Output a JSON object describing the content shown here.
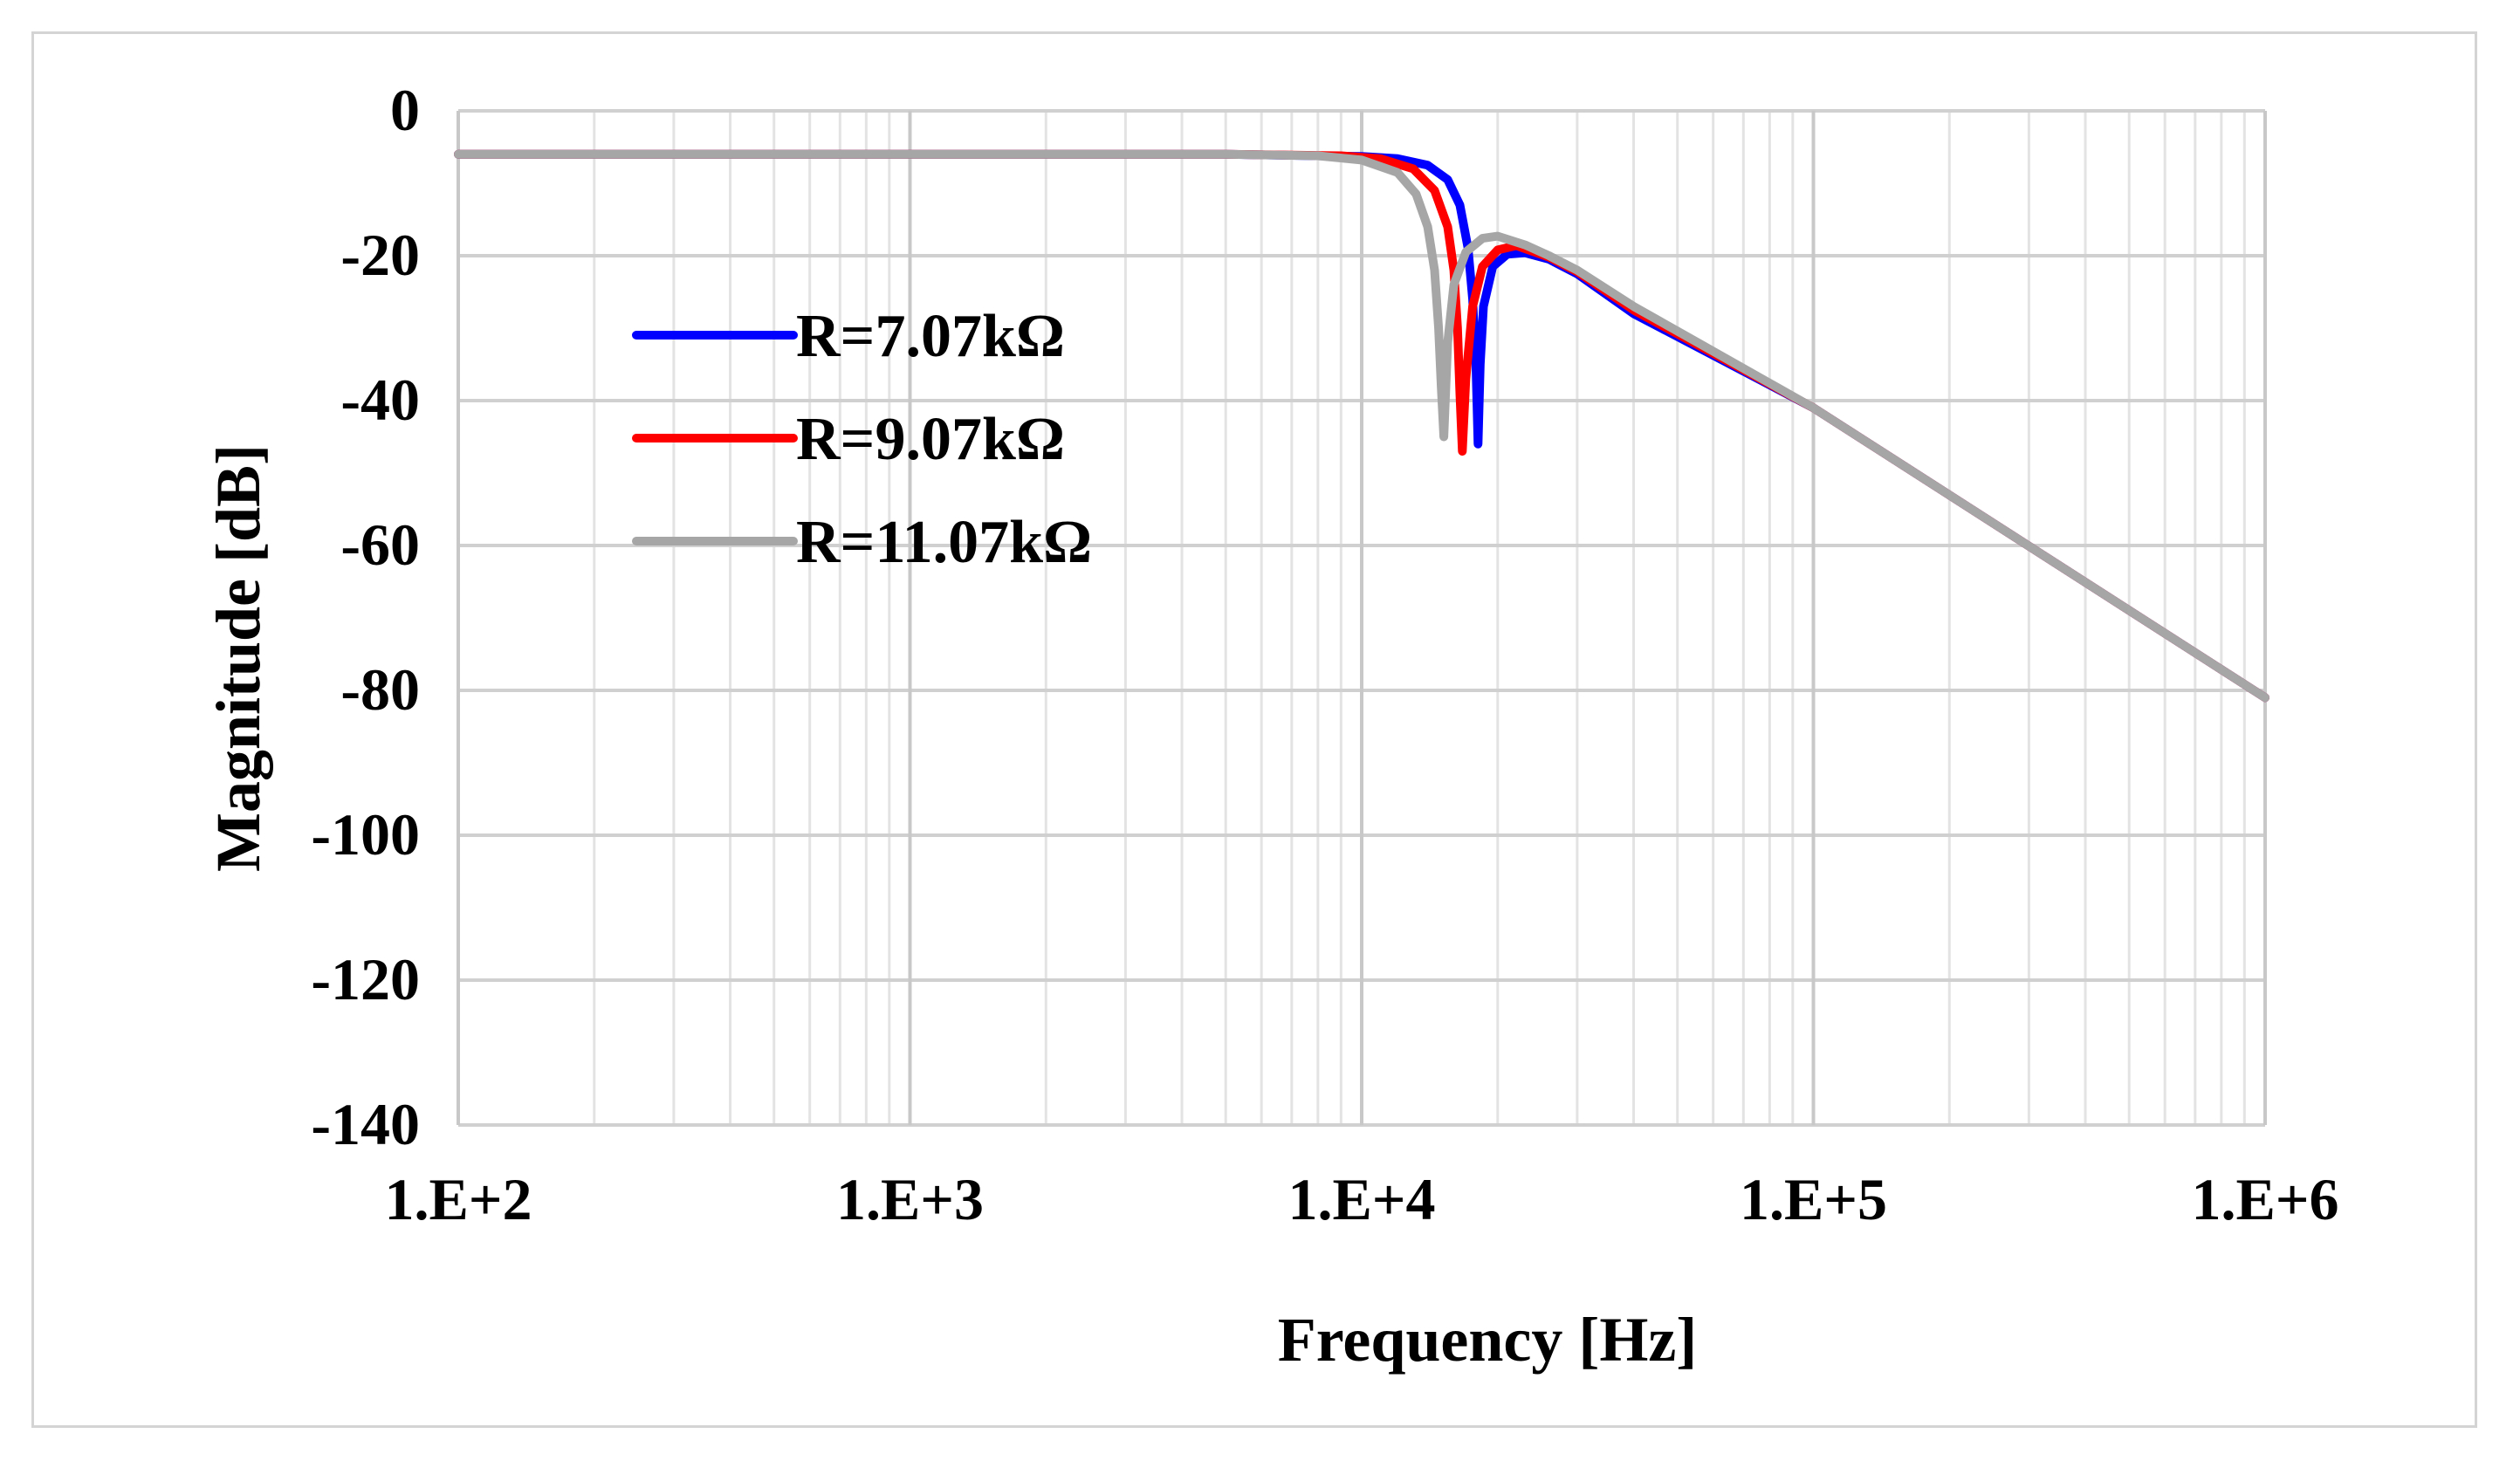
{
  "chart_data": {
    "type": "line",
    "title": "",
    "xlabel": "Frequency [Hz]",
    "ylabel": "Magnitude [dB]",
    "x_scale": "log",
    "xlim": [
      100,
      1000000
    ],
    "ylim": [
      -140,
      0
    ],
    "x_ticks": [
      100,
      1000,
      10000,
      100000,
      1000000
    ],
    "x_tick_labels": [
      "1.E+2",
      "1.E+3",
      "1.E+4",
      "1.E+5",
      "1.E+6"
    ],
    "y_ticks": [
      0,
      -20,
      -40,
      -60,
      -80,
      -100,
      -120,
      -140
    ],
    "y_tick_labels": [
      "0",
      "-20",
      "-40",
      "-60",
      "-80",
      "-100",
      "-120",
      "-140"
    ],
    "grid": true,
    "legend_position": "upper-left-inside",
    "series": [
      {
        "name": "R=7.07kΩ",
        "color": "#0000ff",
        "x": [
          100,
          1000,
          5000,
          10000,
          12000,
          14000,
          15500,
          16500,
          17200,
          17600,
          17900,
          18100,
          18300,
          18600,
          19500,
          21000,
          23000,
          26000,
          30000,
          40000,
          100000,
          1000000
        ],
        "y": [
          -6,
          -6,
          -6,
          -6.3,
          -6.6,
          -7.5,
          -9.5,
          -13,
          -19,
          -26,
          -35,
          -46,
          -35,
          -27,
          -21.5,
          -19.8,
          -19.6,
          -20.5,
          -22.5,
          -28,
          -41,
          -81
        ]
      },
      {
        "name": "R=9.07kΩ",
        "color": "#ff0000",
        "x": [
          100,
          1000,
          5000,
          9000,
          11000,
          13000,
          14500,
          15500,
          16000,
          16300,
          16500,
          16700,
          17000,
          17600,
          18500,
          20000,
          22000,
          26000,
          30000,
          40000,
          100000,
          1000000
        ],
        "y": [
          -6,
          -6,
          -6,
          -6.2,
          -6.6,
          -8,
          -11,
          -16,
          -22,
          -30,
          -39,
          -47,
          -37,
          -27,
          -21.5,
          -19.2,
          -18.6,
          -20.2,
          -22.2,
          -27.5,
          -41,
          -81
        ]
      },
      {
        "name": "R=11.07kΩ",
        "color": "#a6a6a6",
        "x": [
          100,
          1000,
          5000,
          8000,
          10000,
          12000,
          13200,
          14000,
          14500,
          14800,
          15000,
          15200,
          15500,
          16000,
          17000,
          18500,
          20000,
          23000,
          26000,
          30000,
          40000,
          100000,
          1000000
        ],
        "y": [
          -6,
          -6,
          -6,
          -6.2,
          -6.8,
          -8.5,
          -11.5,
          -16,
          -22,
          -30,
          -38,
          -45,
          -32,
          -24,
          -19.5,
          -17.6,
          -17.3,
          -18.5,
          -20,
          -22,
          -27,
          -41,
          -81
        ]
      }
    ]
  }
}
